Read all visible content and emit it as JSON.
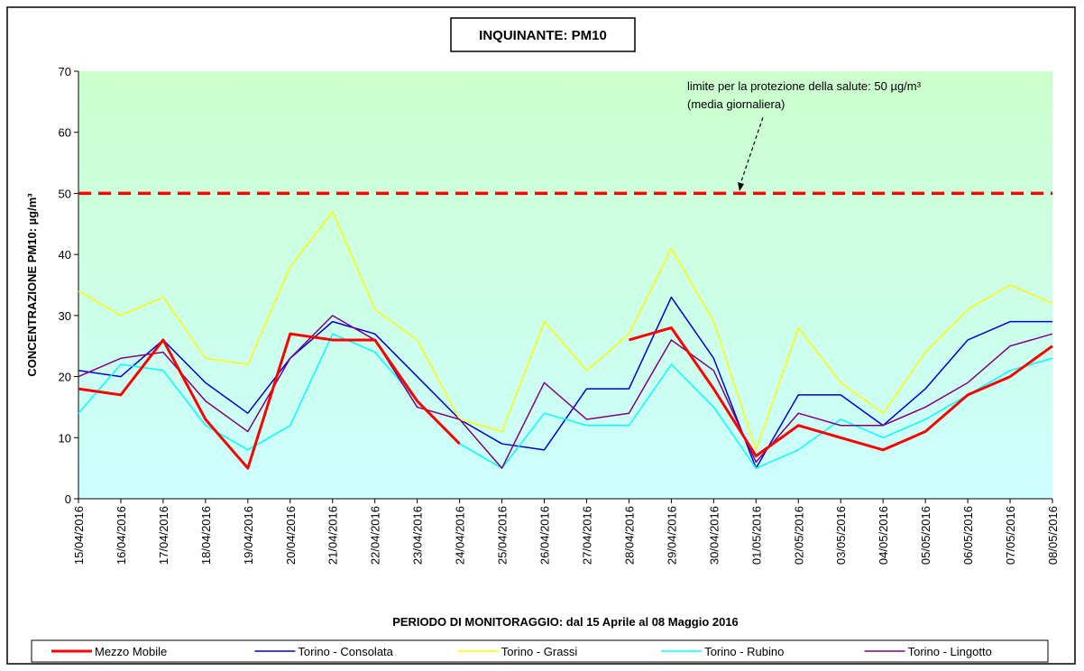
{
  "chart_data": {
    "type": "line",
    "title": "INQUINANTE: PM10",
    "y_label": "CONCENTRAZIONE PM10: µg/m³",
    "x_label": "PERIODO DI MONITORAGGIO: dal 15 Aprile al 08 Maggio 2016",
    "categories": [
      "15/04/2016",
      "16/04/2016",
      "17/04/2016",
      "18/04/2016",
      "19/04/2016",
      "20/04/2016",
      "21/04/2016",
      "22/04/2016",
      "23/04/2016",
      "24/04/2016",
      "25/04/2016",
      "26/04/2016",
      "27/04/2016",
      "28/04/2016",
      "29/04/2016",
      "30/04/2016",
      "01/05/2016",
      "02/05/2016",
      "03/05/2016",
      "04/05/2016",
      "05/05/2016",
      "06/05/2016",
      "07/05/2016",
      "08/05/2016"
    ],
    "series": [
      {
        "name": "Mezzo Mobile",
        "color": "#ff0000",
        "values": [
          18,
          17,
          26,
          13,
          5,
          27,
          26,
          26,
          16,
          9,
          null,
          null,
          null,
          26,
          28,
          18,
          7,
          12,
          10,
          8,
          11,
          17,
          20,
          25
        ]
      },
      {
        "name": "Torino - Consolata",
        "color": "#0000cc",
        "values": [
          21,
          20,
          26,
          19,
          14,
          23,
          29,
          27,
          20,
          13,
          9,
          8,
          18,
          18,
          33,
          23,
          5,
          17,
          17,
          12,
          18,
          26,
          29,
          29
        ]
      },
      {
        "name": "Torino - Grassi",
        "color": "#ffff00",
        "values": [
          34,
          30,
          33,
          23,
          22,
          38,
          47,
          31,
          26,
          13,
          11,
          29,
          21,
          27,
          41,
          29,
          8,
          28,
          19,
          14,
          24,
          31,
          35,
          32
        ]
      },
      {
        "name": "Torino - Rubino",
        "color": "#00ffff",
        "values": [
          14,
          22,
          21,
          12,
          8,
          12,
          27,
          24,
          16,
          9,
          5,
          14,
          12,
          12,
          22,
          15,
          5,
          8,
          13,
          10,
          13,
          17,
          21,
          23
        ]
      },
      {
        "name": "Torino - Lingotto",
        "color": "#800080",
        "values": [
          20,
          23,
          24,
          16,
          11,
          23,
          30,
          26,
          15,
          13,
          5,
          19,
          13,
          14,
          26,
          21,
          6,
          14,
          12,
          12,
          15,
          19,
          25,
          27
        ]
      }
    ],
    "threshold": {
      "value": 50,
      "color": "#ff0000",
      "label": [
        "limite per la protezione della salute: 50 µg/m³",
        "(media giornaliera)"
      ]
    },
    "ylim": [
      0,
      70
    ],
    "yticks": [
      0,
      10,
      20,
      30,
      40,
      50,
      60,
      70
    ],
    "grid": false
  }
}
